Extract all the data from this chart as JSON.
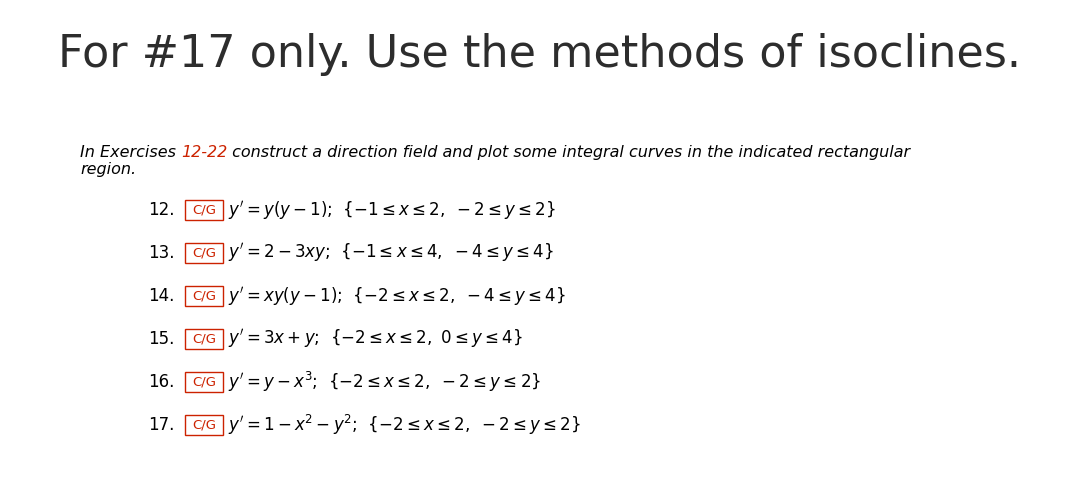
{
  "title": "For #17 only. Use the methods of isoclines.",
  "title_fontsize": 32,
  "title_color": "#2d2d2d",
  "title_weight": "normal",
  "intro_fontsize": 11.5,
  "intro_number_color": "#cc2200",
  "exercises": [
    {
      "number": "12.",
      "formula": "$y' = y(y-1)$;  $\\{-1 \\leq x \\leq 2,\\ -2 \\leq y \\leq 2\\}$"
    },
    {
      "number": "13.",
      "formula": "$y' = 2 - 3xy$;  $\\{-1 \\leq x \\leq 4,\\ -4 \\leq y \\leq 4\\}$"
    },
    {
      "number": "14.",
      "formula": "$y' = xy(y-1)$;  $\\{-2 \\leq x \\leq 2,\\ -4 \\leq y \\leq 4\\}$"
    },
    {
      "number": "15.",
      "formula": "$y' = 3x + y$;  $\\{-2 \\leq x \\leq 2,\\ 0 \\leq y \\leq 4\\}$"
    },
    {
      "number": "16.",
      "formula": "$y' = y - x^3$;  $\\{-2 \\leq x \\leq 2,\\ -2 \\leq y \\leq 2\\}$"
    },
    {
      "number": "17.",
      "formula": "$y' = 1 - x^2 - y^2$;  $\\{-2 \\leq x \\leq 2,\\ -2 \\leq y \\leq 2\\}$"
    }
  ],
  "cg_label": "C/G",
  "cg_fontsize": 9.5,
  "cg_color": "#cc2200",
  "exercise_fontsize": 12,
  "number_fontsize": 12,
  "bg_color": "#ffffff"
}
